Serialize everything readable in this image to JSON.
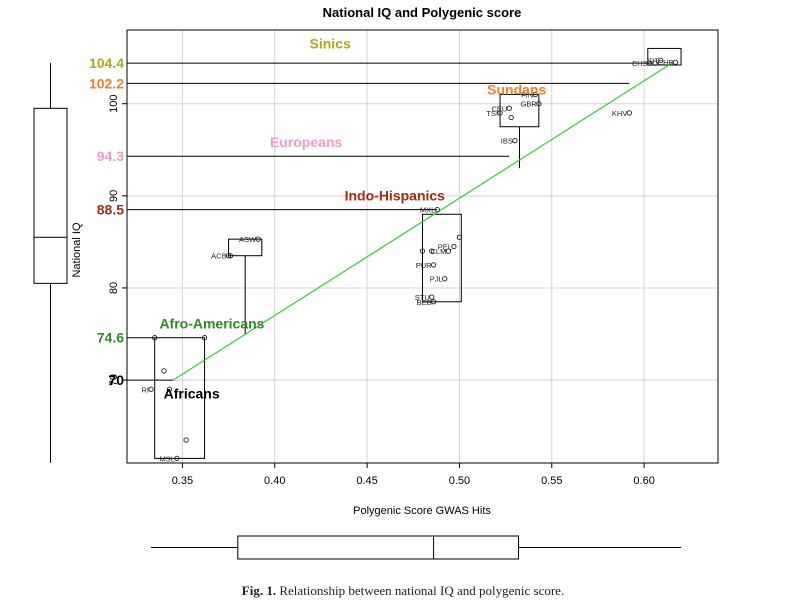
{
  "chart_data": {
    "type": "scatter",
    "title": "National IQ and Polygenic score",
    "xlabel": "Polygenic Score GWAS Hits",
    "ylabel": "National IQ",
    "xlim": [
      0.32,
      0.64
    ],
    "ylim": [
      61,
      108
    ],
    "x_ticks": [
      0.35,
      0.4,
      0.45,
      0.5,
      0.55,
      0.6
    ],
    "x_tick_labels": [
      "0.35",
      "0.40",
      "0.45",
      "0.50",
      "0.55",
      "0.60"
    ],
    "y_ticks": [
      70,
      80,
      90,
      100
    ],
    "y_tick_labels": [
      "70",
      "80",
      "90",
      "100"
    ],
    "grid": true,
    "points": [
      {
        "label": "YRI",
        "display": "RI",
        "x": 0.333,
        "y": 69.0
      },
      {
        "label": "ESN",
        "display": "",
        "x": 0.343,
        "y": 69.0
      },
      {
        "label": "",
        "display": "",
        "x": 0.335,
        "y": 74.6
      },
      {
        "label": "",
        "display": "",
        "x": 0.34,
        "y": 71.0
      },
      {
        "label": "",
        "display": "",
        "x": 0.352,
        "y": 63.5
      },
      {
        "label": "",
        "display": "",
        "x": 0.362,
        "y": 74.6
      },
      {
        "label": "MSL",
        "display": "MSL",
        "x": 0.347,
        "y": 61.5
      },
      {
        "label": "ACB",
        "display": "ACB",
        "x": 0.375,
        "y": 83.5
      },
      {
        "label": "ASW",
        "display": "ASW",
        "x": 0.391,
        "y": 85.3
      },
      {
        "label": "",
        "display": "",
        "x": 0.376,
        "y": 83.5
      },
      {
        "label": "STU",
        "display": "STU",
        "x": 0.485,
        "y": 79.0
      },
      {
        "label": "BEB",
        "display": "BEB",
        "x": 0.486,
        "y": 78.5
      },
      {
        "label": "PUR",
        "display": "PUR",
        "x": 0.486,
        "y": 82.5
      },
      {
        "label": "MXL",
        "display": "MXL",
        "x": 0.488,
        "y": 88.5
      },
      {
        "label": "PEL",
        "display": "PEL",
        "x": 0.497,
        "y": 84.5
      },
      {
        "label": "CLM",
        "display": "CLM",
        "x": 0.494,
        "y": 84.0
      },
      {
        "label": "PJL",
        "display": "PJL",
        "x": 0.492,
        "y": 81.0
      },
      {
        "label": "",
        "display": "",
        "x": 0.5,
        "y": 85.5
      },
      {
        "label": "",
        "display": "",
        "x": 0.48,
        "y": 84.0
      },
      {
        "label": "",
        "display": "",
        "x": 0.485,
        "y": 84.0
      },
      {
        "label": "TSI",
        "display": "TSI",
        "x": 0.522,
        "y": 99.0
      },
      {
        "label": "CEU",
        "display": "CEU",
        "x": 0.527,
        "y": 99.5
      },
      {
        "label": "IBS",
        "display": "IBS",
        "x": 0.53,
        "y": 96.0
      },
      {
        "label": "FIN",
        "display": "FIN",
        "x": 0.541,
        "y": 101.0
      },
      {
        "label": "GBR",
        "display": "GBR",
        "x": 0.543,
        "y": 100.0
      },
      {
        "label": "",
        "display": "",
        "x": 0.528,
        "y": 98.5
      },
      {
        "label": "KHV",
        "display": "KHV",
        "x": 0.592,
        "y": 99.0
      },
      {
        "label": "CHS",
        "display": "CHS",
        "x": 0.603,
        "y": 104.4
      },
      {
        "label": "CDX",
        "display": "",
        "x": 0.606,
        "y": 104.4
      },
      {
        "label": "JPT",
        "display": "JPT",
        "x": 0.609,
        "y": 104.7
      },
      {
        "label": "CHB",
        "display": "CHB",
        "x": 0.617,
        "y": 104.5
      }
    ],
    "regression_line": {
      "x": [
        0.345,
        0.615
      ],
      "y": [
        70.0,
        104.4
      ],
      "color": "#33cc33"
    },
    "group_boxes": [
      {
        "group": "Africans",
        "x_min": 0.335,
        "x_max": 0.362,
        "y_min": 61.5,
        "y_max": 74.6
      },
      {
        "group": "Afro-Americans",
        "x_min": 0.375,
        "x_max": 0.393,
        "y_min": 83.5,
        "y_max": 85.3,
        "whisker_to": 75.0
      },
      {
        "group": "Indo-Hispanics",
        "x_min": 0.48,
        "x_max": 0.501,
        "y_min": 78.5,
        "y_max": 88.0
      },
      {
        "group": "Europeans",
        "x_min": 0.522,
        "x_max": 0.543,
        "y_min": 97.5,
        "y_max": 101.0,
        "whisker_to": 93.0
      },
      {
        "group": "Sinics",
        "x_min": 0.602,
        "x_max": 0.62,
        "y_min": 104.2,
        "y_max": 106.0
      }
    ],
    "group_annotations": [
      {
        "name": "Sinics",
        "iq": 104.4,
        "iq_label": "104.4",
        "label_x": 0.43,
        "label_y": 106.0,
        "line_end_x": 0.605,
        "color": "#b5a51a"
      },
      {
        "name": "Sundans",
        "iq": 102.2,
        "iq_label": "102.2",
        "label_x": 0.531,
        "label_y": 101.0,
        "line_end_x": 0.592,
        "color": "#ef7f2a"
      },
      {
        "name": "Europeans",
        "iq": 94.3,
        "iq_label": "94.3",
        "label_x": 0.417,
        "label_y": 95.3,
        "line_end_x": 0.527,
        "color": "#ef9cc8"
      },
      {
        "name": "Indo-Hispanics",
        "iq": 88.5,
        "iq_label": "88.5",
        "label_x": 0.465,
        "label_y": 89.5,
        "line_end_x": 0.488,
        "color": "#a12c12"
      },
      {
        "name": "Afro-Americans",
        "iq": 74.6,
        "iq_label": "74.6",
        "label_x": 0.366,
        "label_y": 75.6,
        "line_end_x": 0.335,
        "color": "#2e8b22"
      },
      {
        "name": "Africans",
        "iq": 70,
        "iq_label": "70",
        "label_x": 0.355,
        "label_y": 68.0,
        "line_end_x": 0.345,
        "color": "#000000"
      }
    ],
    "marginal_boxplot_y": {
      "min": 61.0,
      "q1": 80.5,
      "median": 85.5,
      "q3": 99.5,
      "max": 104.4
    },
    "marginal_boxplot_x": {
      "min": 0.333,
      "q1": 0.38,
      "median": 0.486,
      "q3": 0.532,
      "max": 0.62
    }
  },
  "caption": {
    "prefix": "Fig. 1.",
    "text": " Relationship between national IQ and polygenic score."
  }
}
